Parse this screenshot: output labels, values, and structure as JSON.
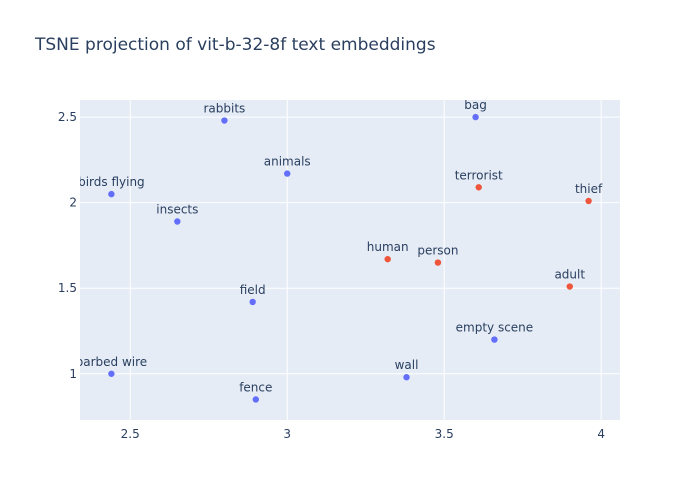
{
  "chart_data": {
    "type": "scatter",
    "title": "TSNE projection of vit-b-32-8f text embeddings",
    "xlabel": "",
    "ylabel": "",
    "xlim": [
      2.34,
      4.06
    ],
    "ylim": [
      0.73,
      2.6
    ],
    "x_ticks": [
      {
        "value": 2.5,
        "label": "2.5"
      },
      {
        "value": 3,
        "label": "3"
      },
      {
        "value": 3.5,
        "label": "3.5"
      },
      {
        "value": 4,
        "label": "4"
      }
    ],
    "y_ticks": [
      {
        "value": 1,
        "label": "1"
      },
      {
        "value": 1.5,
        "label": "1.5"
      },
      {
        "value": 2,
        "label": "2"
      },
      {
        "value": 2.5,
        "label": "2.5"
      }
    ],
    "grid": true,
    "series": [
      {
        "color": "#636efa",
        "points": [
          {
            "label": "rabbits",
            "x": 2.8,
            "y": 2.48
          },
          {
            "label": "bag",
            "x": 3.6,
            "y": 2.5
          },
          {
            "label": "animals",
            "x": 3.0,
            "y": 2.17
          },
          {
            "label": "birds flying",
            "x": 2.44,
            "y": 2.05
          },
          {
            "label": "insects",
            "x": 2.65,
            "y": 1.89
          },
          {
            "label": "field",
            "x": 2.89,
            "y": 1.42
          },
          {
            "label": "empty scene",
            "x": 3.66,
            "y": 1.2
          },
          {
            "label": "barbed wire",
            "x": 2.44,
            "y": 1.0
          },
          {
            "label": "wall",
            "x": 3.38,
            "y": 0.98
          },
          {
            "label": "fence",
            "x": 2.9,
            "y": 0.85
          }
        ]
      },
      {
        "color": "#ef553b",
        "points": [
          {
            "label": "terrorist",
            "x": 3.61,
            "y": 2.09
          },
          {
            "label": "thief",
            "x": 3.96,
            "y": 2.01
          },
          {
            "label": "human",
            "x": 3.32,
            "y": 1.67
          },
          {
            "label": "person",
            "x": 3.48,
            "y": 1.65
          },
          {
            "label": "adult",
            "x": 3.9,
            "y": 1.51
          }
        ]
      }
    ]
  },
  "colors": {
    "plot_bg": "#e5ecf6",
    "grid": "#ffffff",
    "text": "#2a3f5f"
  }
}
